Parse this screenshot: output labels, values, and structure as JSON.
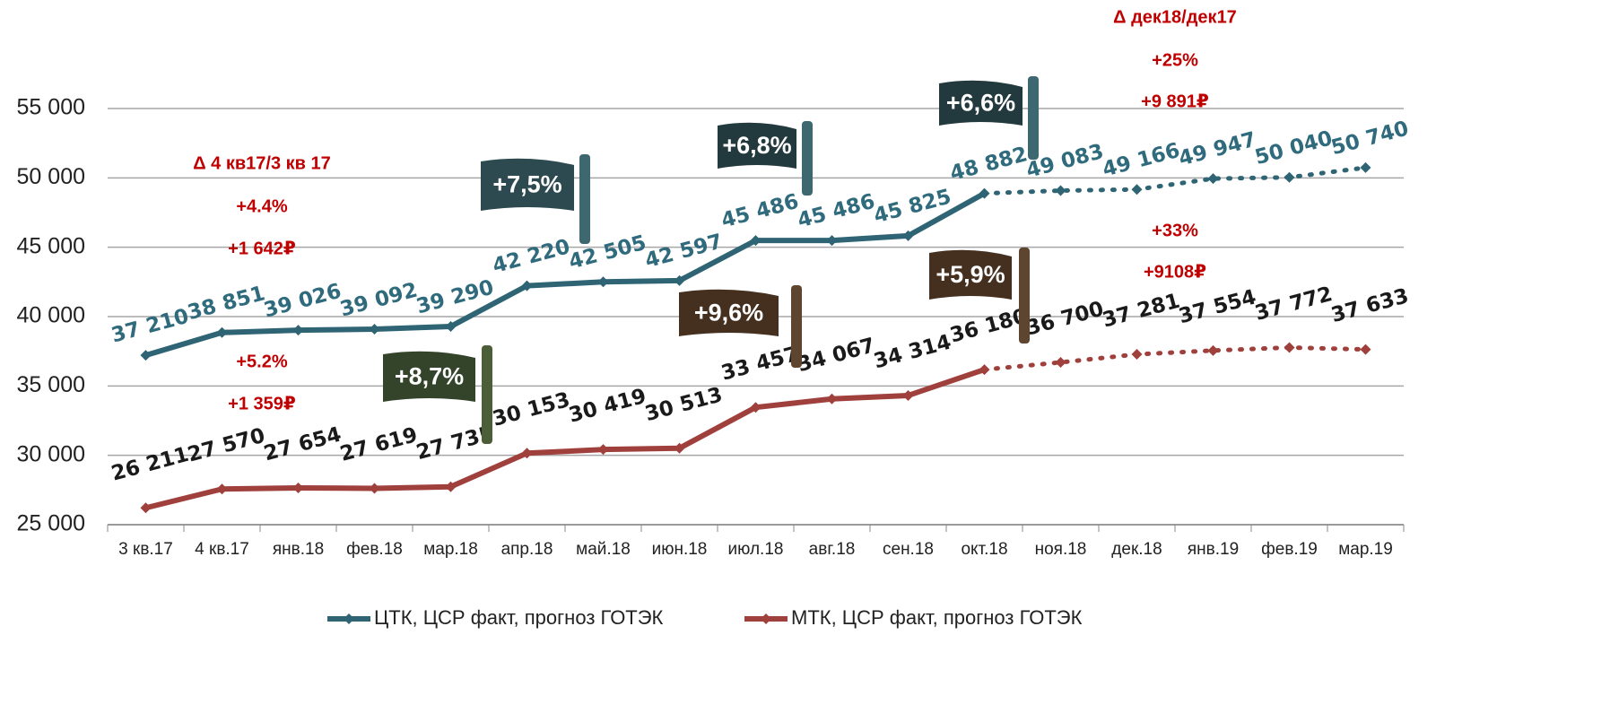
{
  "chart_data": {
    "type": "line",
    "categories": [
      "3 кв.17",
      "4 кв.17",
      "янв.18",
      "фев.18",
      "мар.18",
      "апр.18",
      "май.18",
      "июн.18",
      "июл.18",
      "авг.18",
      "сен.18",
      "окт.18",
      "ноя.18",
      "дек.18",
      "янв.19",
      "фев.19",
      "мар.19"
    ],
    "series": [
      {
        "name": "ЦТК, ЦСР факт, прогноз ГОТЭК",
        "color": "#2e6474",
        "label_color": "#2f6b7c",
        "values": [
          37210,
          38851,
          39026,
          39092,
          39290,
          42220,
          42505,
          42597,
          45486,
          45486,
          45825,
          48882,
          49083,
          49166,
          49947,
          50040,
          50740
        ],
        "value_labels": [
          "37 210",
          "38 851",
          "39 026",
          "39 092",
          "39 290",
          "42 220",
          "42 505",
          "42 597",
          "45 486",
          "45 486",
          "45 825",
          "48 882",
          "49 083",
          "49 166",
          "49 947",
          "50 040",
          "50 740"
        ]
      },
      {
        "name": "МТК, ЦСР факт, прогноз ГОТЭК",
        "color": "#a0403c",
        "label_color": "#1a1a1a",
        "values": [
          26211,
          27570,
          27654,
          27619,
          27735,
          30153,
          30419,
          30513,
          33457,
          34067,
          34314,
          36180,
          36700,
          37281,
          37554,
          37772,
          37633
        ],
        "value_labels": [
          "26 211",
          "27 570",
          "27 654",
          "27 619",
          "27 735",
          "30 153",
          "30 419",
          "30 513",
          "33 457",
          "34 067",
          "34 314",
          "36 180",
          "36 700",
          "37 281",
          "37 554",
          "37 772",
          "37 633"
        ]
      }
    ],
    "forecast_from": "окт.18",
    "ylim": [
      25000,
      55000
    ],
    "yticks": [
      {
        "value": 25000,
        "label": "25 000"
      },
      {
        "value": 30000,
        "label": "30 000"
      },
      {
        "value": 35000,
        "label": "35 000"
      },
      {
        "value": 40000,
        "label": "40 000"
      },
      {
        "value": 45000,
        "label": "45 000"
      },
      {
        "value": 50000,
        "label": "50 000"
      },
      {
        "value": 55000,
        "label": "55 000"
      }
    ],
    "grid": true,
    "legend": "bottom",
    "annotations": [
      "Δ 4 кв17/3 кв 17",
      "+4.4%",
      "+1 642₽",
      "+5.2%",
      "+1 359₽",
      "Δ дек18/дек17",
      "+25%",
      "+9 891₽",
      "+33%",
      "+9108₽"
    ],
    "flags": [
      "+7,5%",
      "+6,8%",
      "+6,6%",
      "+8,7%",
      "+9,6%",
      "+5,9%"
    ]
  }
}
